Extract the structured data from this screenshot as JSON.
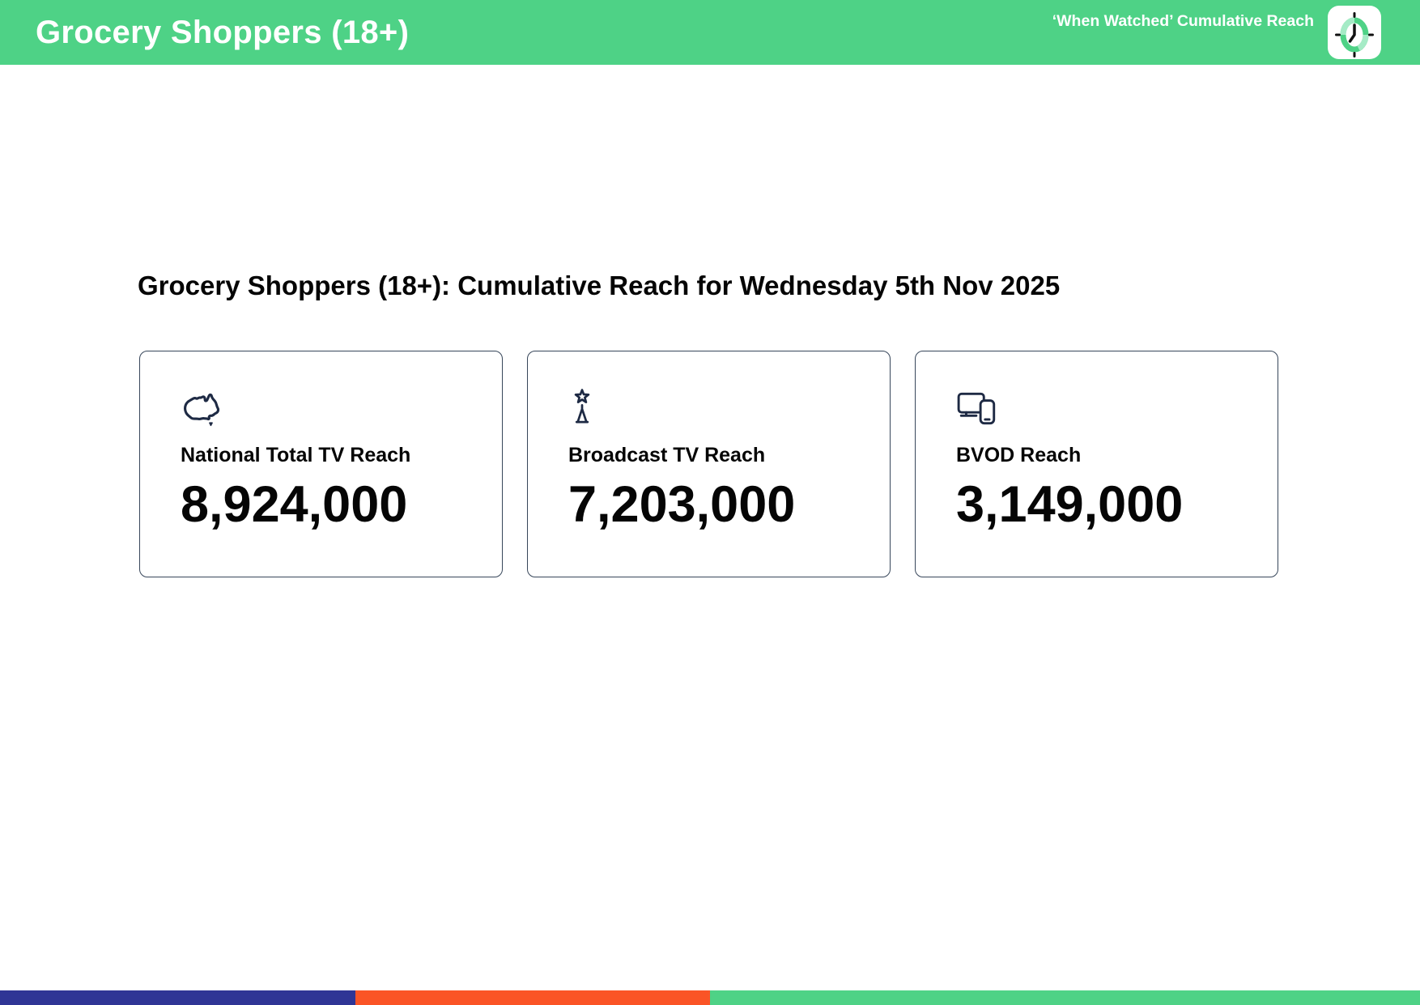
{
  "header": {
    "title": "Grocery Shoppers (18+)",
    "subtitle": "‘When Watched’ Cumulative Reach",
    "icon": "clock-app-icon"
  },
  "main": {
    "heading": "Grocery Shoppers (18+): Cumulative Reach for Wednesday 5th Nov 2025",
    "cards": [
      {
        "icon": "australia-map-icon",
        "label": "National Total TV Reach",
        "value": "8,924,000"
      },
      {
        "icon": "broadcast-tower-icon",
        "label": "Broadcast TV Reach",
        "value": "7,203,000"
      },
      {
        "icon": "tv-and-phone-icon",
        "label": "BVOD Reach",
        "value": "3,149,000"
      }
    ]
  },
  "footer": {
    "segments": [
      {
        "name": "navy-segment",
        "color": "#2f3595",
        "width_pct": 25
      },
      {
        "name": "orange-segment",
        "color": "#fa5426",
        "width_pct": 25
      },
      {
        "name": "green-segment",
        "color": "#4ed286",
        "width_pct": 50
      }
    ]
  },
  "colors": {
    "brand_green": "#4ed286",
    "brand_green_light": "#a5ebc6",
    "icon_ink": "#1e2a44",
    "card_border": "#37465a",
    "text": "#050505",
    "header_text": "#ffffff"
  }
}
